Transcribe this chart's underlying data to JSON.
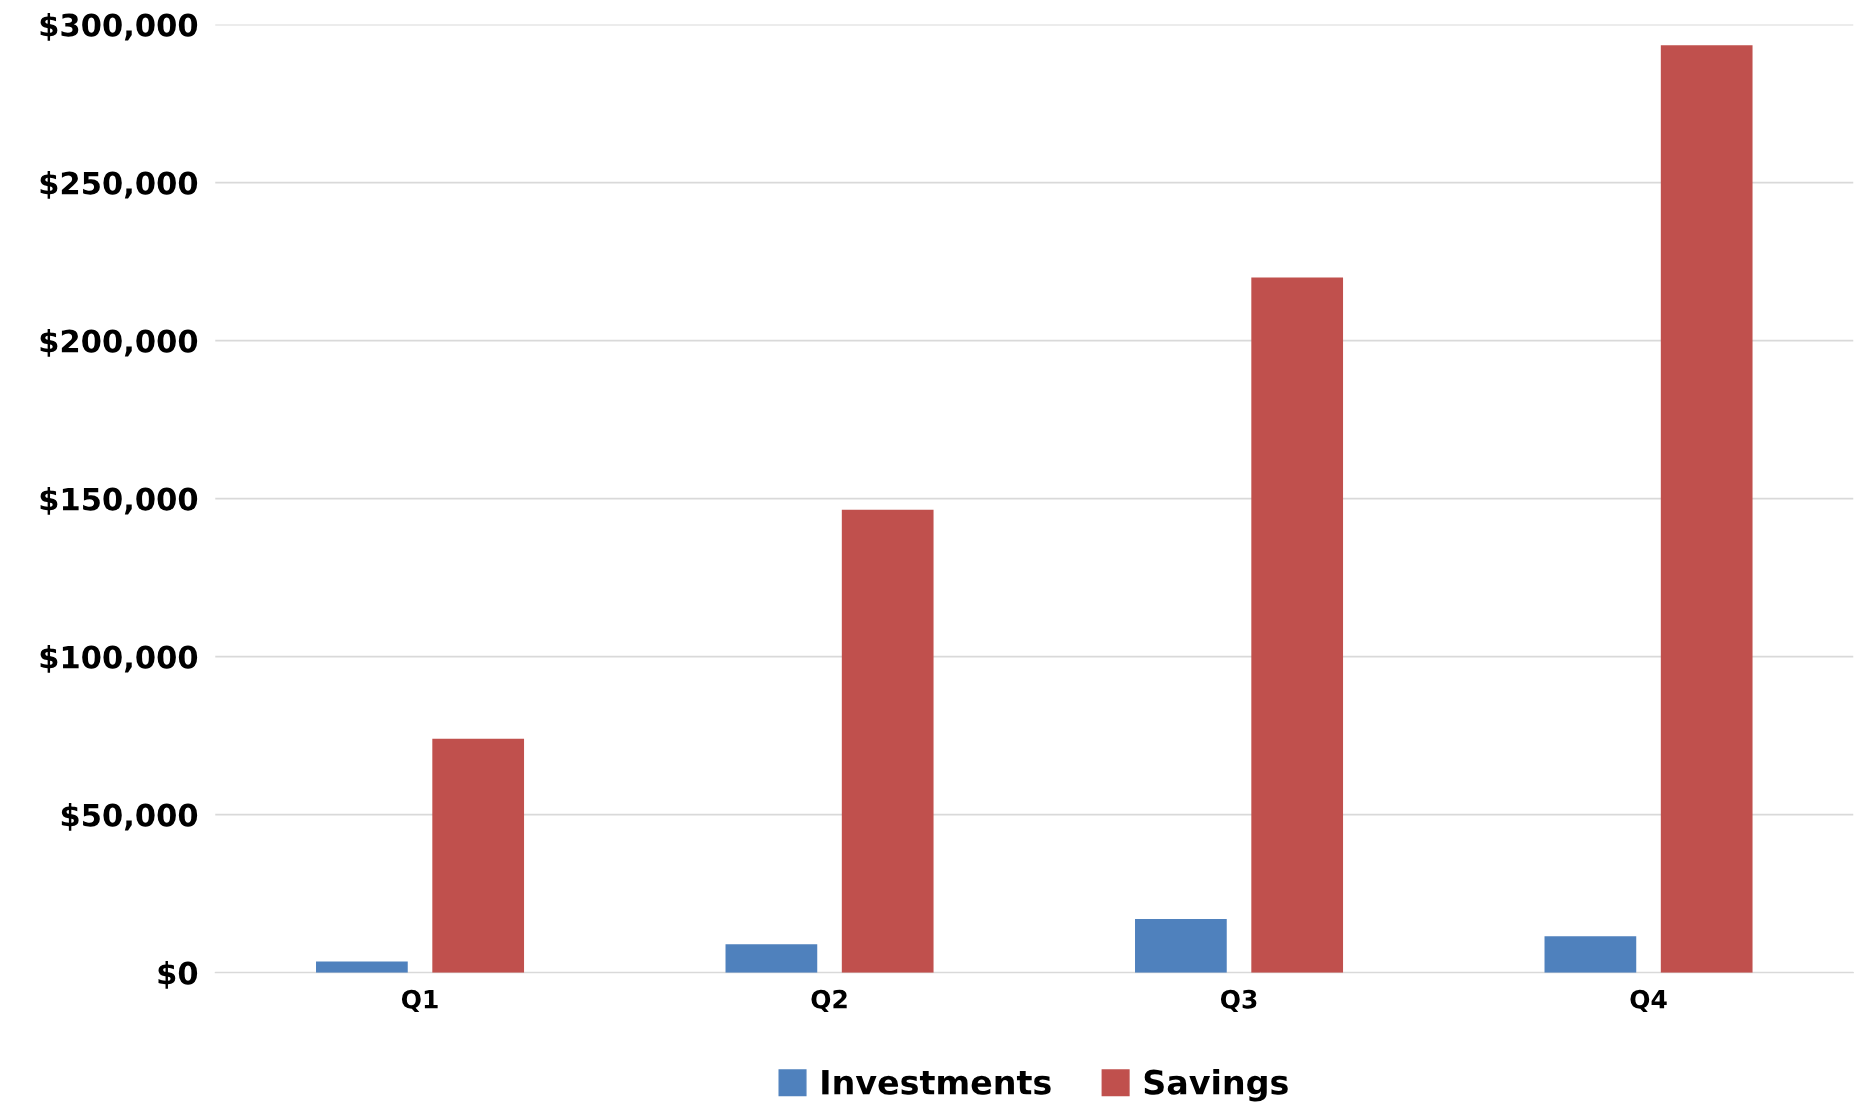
{
  "chart_data": {
    "type": "bar",
    "categories": [
      "Q1",
      "Q2",
      "Q3",
      "Q4"
    ],
    "series": [
      {
        "name": "Investments",
        "color": "#4f81bd",
        "values": [
          3500,
          9000,
          17000,
          11500
        ]
      },
      {
        "name": "Savings",
        "color": "#c0504d",
        "values": [
          74000,
          146500,
          220000,
          293500
        ]
      }
    ],
    "ylim": [
      0,
      300000
    ],
    "yticks": [
      {
        "value": 0,
        "label": "$0"
      },
      {
        "value": 50000,
        "label": "$50,000"
      },
      {
        "value": 100000,
        "label": "$100,000"
      },
      {
        "value": 150000,
        "label": "$150,000"
      },
      {
        "value": 200000,
        "label": "$200,000"
      },
      {
        "value": 250000,
        "label": "$250,000"
      },
      {
        "value": 300000,
        "label": "$300,000"
      }
    ],
    "grid": "y",
    "legend": "bottom"
  }
}
